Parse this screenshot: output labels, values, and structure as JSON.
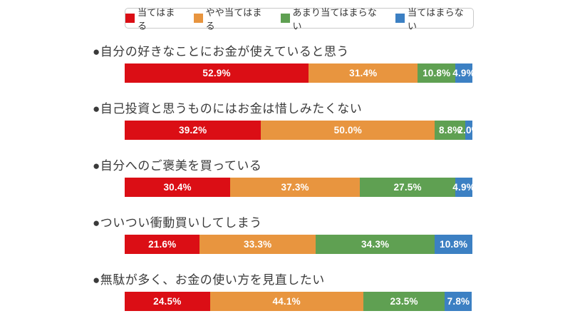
{
  "colors": {
    "agree": "#db0e15",
    "somewhat_agree": "#e8953f",
    "somewhat_disagree": "#5fa052",
    "disagree": "#3c80c3",
    "legend_border": "#c9c9c9",
    "title_text": "#3a3a3a",
    "bar_label_text": "#ffffff"
  },
  "legend": {
    "items": [
      {
        "label": "当てはまる",
        "color_key": "agree"
      },
      {
        "label": "やや当てはまる",
        "color_key": "somewhat_agree"
      },
      {
        "label": "あまり当てはまらない",
        "color_key": "somewhat_disagree"
      },
      {
        "label": "当てはまらない",
        "color_key": "disagree"
      }
    ]
  },
  "chart_data": {
    "type": "bar",
    "orientation": "horizontal-stacked",
    "unit": "%",
    "xlim": [
      0,
      100
    ],
    "grid": false,
    "legend_position": "top",
    "series_names": [
      "当てはまる",
      "やや当てはまる",
      "あまり当てはまらない",
      "当てはまらない"
    ],
    "categories": [
      "●自分の好きなことにお金が使えていると思う",
      "●自己投資と思うものにはお金は惜しみたくない",
      "●自分へのご褒美を買っている",
      "●ついつい衝動買いしてしまう",
      "●無駄が多く、お金の使い方を見直したい"
    ],
    "rows": [
      {
        "title": "●自分の好きなことにお金が使えていると思う",
        "values": [
          52.9,
          31.4,
          10.8,
          4.9
        ],
        "labels": [
          "52.9%",
          "31.4%",
          "10.8%",
          "4.9%"
        ]
      },
      {
        "title": "●自己投資と思うものにはお金は惜しみたくない",
        "values": [
          39.2,
          50.0,
          8.8,
          2.0
        ],
        "labels": [
          "39.2%",
          "50.0%",
          "8.8%",
          "2.0%"
        ]
      },
      {
        "title": "●自分へのご褒美を買っている",
        "values": [
          30.4,
          37.3,
          27.5,
          4.9
        ],
        "labels": [
          "30.4%",
          "37.3%",
          "27.5%",
          "4.9%"
        ]
      },
      {
        "title": "●ついつい衝動買いしてしまう",
        "values": [
          21.6,
          33.3,
          34.3,
          10.8
        ],
        "labels": [
          "21.6%",
          "33.3%",
          "34.3%",
          "10.8%"
        ]
      },
      {
        "title": "●無駄が多く、お金の使い方を見直したい",
        "values": [
          24.5,
          44.1,
          23.5,
          7.8
        ],
        "labels": [
          "24.5%",
          "44.1%",
          "23.5%",
          "7.8%"
        ]
      }
    ]
  },
  "layout": {
    "title_top_start": 58,
    "bar_top_start": 89,
    "row_pitch": 80
  }
}
